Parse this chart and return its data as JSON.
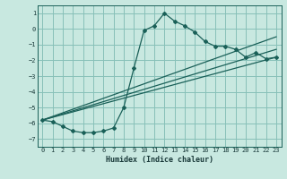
{
  "title": "",
  "xlabel": "Humidex (Indice chaleur)",
  "ylabel": "",
  "bg_color": "#c8e8e0",
  "grid_color": "#88c0b8",
  "line_color": "#1a6058",
  "xlim": [
    -0.5,
    23.5
  ],
  "ylim": [
    -7.5,
    1.5
  ],
  "xticks": [
    0,
    1,
    2,
    3,
    4,
    5,
    6,
    7,
    8,
    9,
    10,
    11,
    12,
    13,
    14,
    15,
    16,
    17,
    18,
    19,
    20,
    21,
    22,
    23
  ],
  "yticks": [
    1,
    0,
    -1,
    -2,
    -3,
    -4,
    -5,
    -6,
    -7
  ],
  "main_x": [
    0,
    1,
    2,
    3,
    4,
    5,
    6,
    7,
    8,
    9,
    10,
    11,
    12,
    13,
    14,
    15,
    16,
    17,
    18,
    19,
    20,
    21,
    22,
    23
  ],
  "main_y": [
    -5.8,
    -5.9,
    -6.2,
    -6.5,
    -6.6,
    -6.6,
    -6.5,
    -6.3,
    -5.0,
    -2.5,
    -0.1,
    0.2,
    1.0,
    0.5,
    0.2,
    -0.2,
    -0.8,
    -1.1,
    -1.1,
    -1.3,
    -1.8,
    -1.5,
    -1.9,
    -1.8
  ],
  "line1_x": [
    0,
    23
  ],
  "line1_y": [
    -5.8,
    -1.8
  ],
  "line2_x": [
    0,
    23
  ],
  "line2_y": [
    -5.8,
    -1.3
  ],
  "line3_x": [
    0,
    23
  ],
  "line3_y": [
    -5.8,
    -0.5
  ]
}
